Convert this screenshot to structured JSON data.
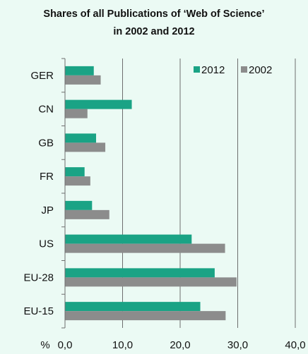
{
  "chart_data": {
    "type": "bar",
    "orientation": "horizontal",
    "title_line1": "Shares of all Publications of ‘Web of Science’",
    "title_line2": "in 2002 and 2012",
    "categories": [
      "GER",
      "CN",
      "GB",
      "FR",
      "JP",
      "US",
      "EU-28",
      "EU-15"
    ],
    "series": [
      {
        "name": "2012",
        "color": "#1aa385",
        "values": [
          5.0,
          11.6,
          5.4,
          3.4,
          4.7,
          22.0,
          26.0,
          23.5
        ]
      },
      {
        "name": "2002",
        "color": "#8c8c8c",
        "values": [
          6.2,
          3.9,
          7.0,
          4.4,
          7.7,
          27.8,
          29.8,
          27.9
        ]
      }
    ],
    "xlabel": "%",
    "xlim": [
      0,
      40
    ],
    "xticks": [
      "0,0",
      "10,0",
      "20,0",
      "30,0",
      "40,0"
    ],
    "grid": true,
    "legend_position": "top-right"
  }
}
